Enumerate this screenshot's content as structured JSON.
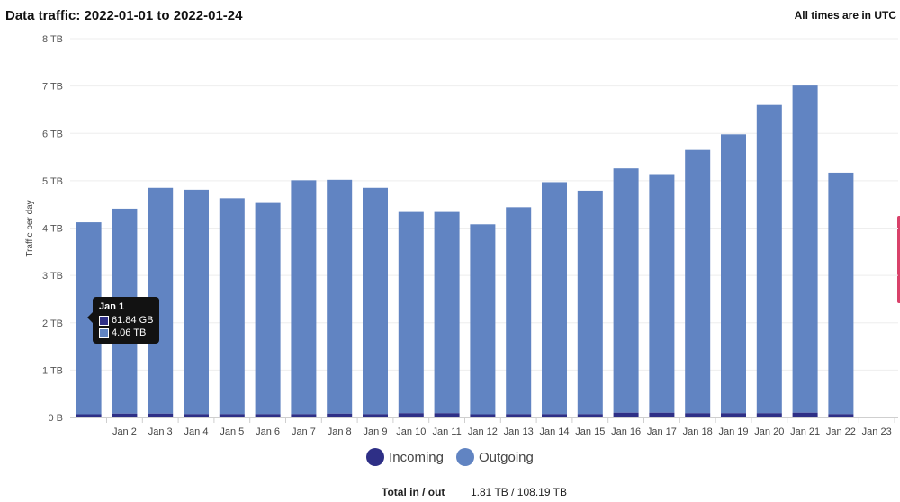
{
  "header": {
    "title": "Data traffic: 2022-01-01 to 2022-01-24",
    "timezone_note": "All times are in UTC"
  },
  "colors": {
    "incoming": "#2e2f86",
    "outgoing": "#6184c2",
    "grid": "#eeeeee"
  },
  "chart_data": {
    "type": "bar",
    "stacked": true,
    "title": "",
    "xlabel": "",
    "ylabel": "Traffic per day",
    "ylim": [
      0,
      8
    ],
    "yunit": "TB",
    "y_ticks": [
      "0 B",
      "1 TB",
      "2 TB",
      "3 TB",
      "4 TB",
      "5 TB",
      "6 TB",
      "7 TB",
      "8 TB"
    ],
    "categories": [
      "Jan 1",
      "Jan 2",
      "Jan 3",
      "Jan 4",
      "Jan 5",
      "Jan 6",
      "Jan 7",
      "Jan 8",
      "Jan 9",
      "Jan 10",
      "Jan 11",
      "Jan 12",
      "Jan 13",
      "Jan 14",
      "Jan 15",
      "Jan 16",
      "Jan 17",
      "Jan 18",
      "Jan 19",
      "Jan 20",
      "Jan 21",
      "Jan 22",
      "Jan 23"
    ],
    "x_tick_labels": [
      "",
      "Jan 2",
      "Jan 3",
      "Jan 4",
      "Jan 5",
      "Jan 6",
      "Jan 7",
      "Jan 8",
      "Jan 9",
      "Jan 10",
      "Jan 11",
      "Jan 12",
      "Jan 13",
      "Jan 14",
      "Jan 15",
      "Jan 16",
      "Jan 17",
      "Jan 18",
      "Jan 19",
      "Jan 20",
      "Jan 21",
      "Jan 22",
      "Jan 23"
    ],
    "series": [
      {
        "name": "Incoming",
        "values": [
          0.062,
          0.08,
          0.08,
          0.07,
          0.07,
          0.07,
          0.07,
          0.08,
          0.07,
          0.09,
          0.09,
          0.06,
          0.07,
          0.07,
          0.07,
          0.1,
          0.1,
          0.09,
          0.09,
          0.09,
          0.1,
          0.07,
          0
        ]
      },
      {
        "name": "Outgoing",
        "values": [
          4.06,
          4.33,
          4.77,
          4.74,
          4.56,
          4.46,
          4.94,
          4.94,
          4.78,
          4.25,
          4.25,
          4.02,
          4.37,
          4.9,
          4.72,
          5.16,
          5.04,
          5.56,
          5.89,
          6.51,
          6.91,
          5.1,
          0
        ]
      }
    ],
    "legend": [
      "Incoming",
      "Outgoing"
    ],
    "legend_position": "bottom",
    "grid": true
  },
  "tooltip": {
    "title": "Jan 1",
    "incoming": "61.84 GB",
    "outgoing": "4.06 TB"
  },
  "totals": {
    "label": "Total in / out",
    "value": "1.81 TB / 108.19 TB"
  }
}
